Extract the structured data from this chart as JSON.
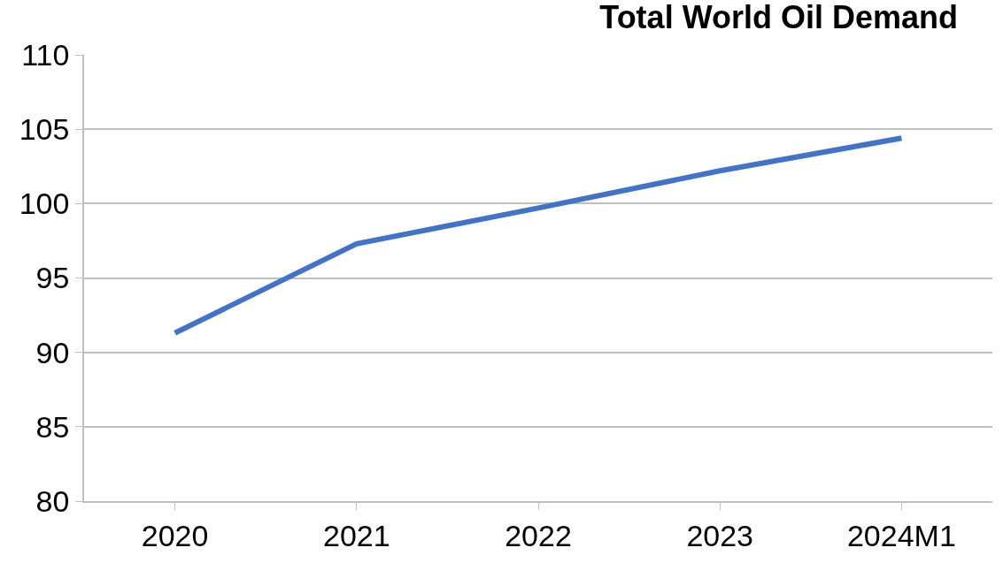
{
  "chart_data": {
    "type": "line",
    "title": "Total World Oil Demand",
    "categories": [
      "2020",
      "2021",
      "2022",
      "2023",
      "2024M1"
    ],
    "series": [
      {
        "color": "#4472c4",
        "values": [
          91.3,
          97.3,
          99.7,
          102.2,
          104.4
        ]
      }
    ],
    "ylim": [
      80,
      110
    ],
    "yticks": [
      80,
      85,
      90,
      95,
      100,
      105,
      110
    ],
    "grid": "y",
    "marker": "none",
    "line_style": "solid"
  }
}
